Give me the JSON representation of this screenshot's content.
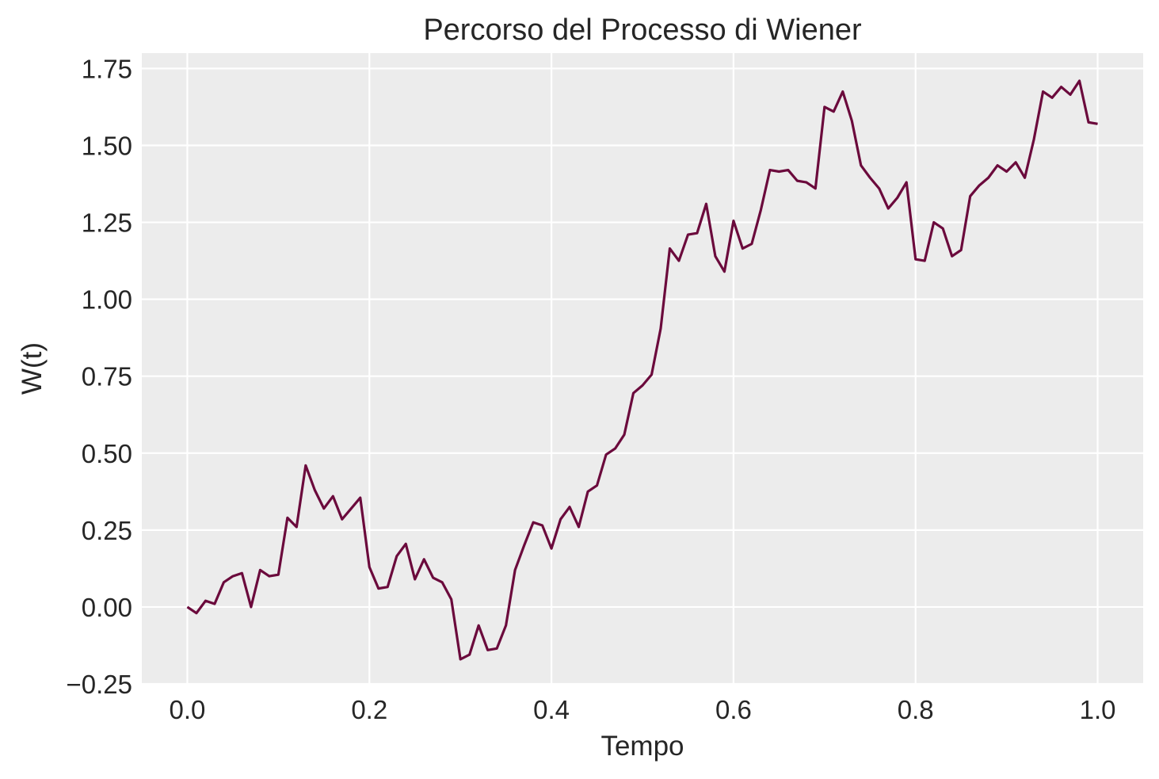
{
  "chart_data": {
    "type": "line",
    "title": "Percorso del Processo di Wiener",
    "xlabel": "Tempo",
    "ylabel": "W(t)",
    "xlim": [
      -0.05,
      1.05
    ],
    "ylim": [
      -0.25,
      1.8
    ],
    "x_ticks": [
      0.0,
      0.2,
      0.4,
      0.6,
      0.8,
      1.0
    ],
    "x_tick_labels": [
      "0.0",
      "0.2",
      "0.4",
      "0.6",
      "0.8",
      "1.0"
    ],
    "y_ticks": [
      -0.25,
      0.0,
      0.25,
      0.5,
      0.75,
      1.0,
      1.25,
      1.5,
      1.75
    ],
    "y_tick_labels": [
      "−0.25",
      "0.00",
      "0.25",
      "0.50",
      "0.75",
      "1.00",
      "1.25",
      "1.50",
      "1.75"
    ],
    "grid": true,
    "background": "#ececec",
    "line_color": "#6b0a3c",
    "series": [
      {
        "x": [
          0.0,
          0.01,
          0.02,
          0.03,
          0.04,
          0.05,
          0.06,
          0.07,
          0.08,
          0.09,
          0.1,
          0.11,
          0.12,
          0.13,
          0.14,
          0.15,
          0.16,
          0.17,
          0.18,
          0.19,
          0.2,
          0.21,
          0.22,
          0.23,
          0.24,
          0.25,
          0.26,
          0.27,
          0.28,
          0.29,
          0.3,
          0.31,
          0.32,
          0.33,
          0.34,
          0.35,
          0.36,
          0.37,
          0.38,
          0.39,
          0.4,
          0.41,
          0.42,
          0.43,
          0.44,
          0.45,
          0.46,
          0.47,
          0.48,
          0.49,
          0.5,
          0.51,
          0.52,
          0.53,
          0.54,
          0.55,
          0.56,
          0.57,
          0.58,
          0.59,
          0.6,
          0.61,
          0.62,
          0.63,
          0.64,
          0.65,
          0.66,
          0.67,
          0.68,
          0.69,
          0.7,
          0.71,
          0.72,
          0.73,
          0.74,
          0.75,
          0.76,
          0.77,
          0.78,
          0.79,
          0.8,
          0.81,
          0.82,
          0.83,
          0.84,
          0.85,
          0.86,
          0.87,
          0.88,
          0.89,
          0.9,
          0.91,
          0.92,
          0.93,
          0.94,
          0.95,
          0.96,
          0.97,
          0.98,
          0.99,
          1.0
        ],
        "y": [
          0.0,
          -0.02,
          0.02,
          0.01,
          0.08,
          0.1,
          0.11,
          0.0,
          0.12,
          0.1,
          0.105,
          0.29,
          0.26,
          0.46,
          0.38,
          0.32,
          0.36,
          0.285,
          0.32,
          0.355,
          0.13,
          0.06,
          0.065,
          0.165,
          0.205,
          0.09,
          0.155,
          0.095,
          0.08,
          0.025,
          -0.17,
          -0.155,
          -0.06,
          -0.14,
          -0.135,
          -0.06,
          0.12,
          0.2,
          0.275,
          0.265,
          0.19,
          0.285,
          0.325,
          0.26,
          0.375,
          0.395,
          0.495,
          0.515,
          0.56,
          0.695,
          0.72,
          0.755,
          0.905,
          1.165,
          1.125,
          1.21,
          1.215,
          1.31,
          1.14,
          1.09,
          1.255,
          1.165,
          1.18,
          1.29,
          1.42,
          1.415,
          1.42,
          1.385,
          1.38,
          1.36,
          1.625,
          1.61,
          1.675,
          1.58,
          1.435,
          1.395,
          1.36,
          1.295,
          1.33,
          1.38,
          1.13,
          1.125,
          1.25,
          1.23,
          1.14,
          1.16,
          1.335,
          1.37,
          1.395,
          1.435,
          1.415,
          1.445,
          1.395,
          1.52,
          1.675,
          1.655,
          1.69,
          1.665,
          1.71,
          1.575,
          1.57
        ]
      }
    ]
  }
}
